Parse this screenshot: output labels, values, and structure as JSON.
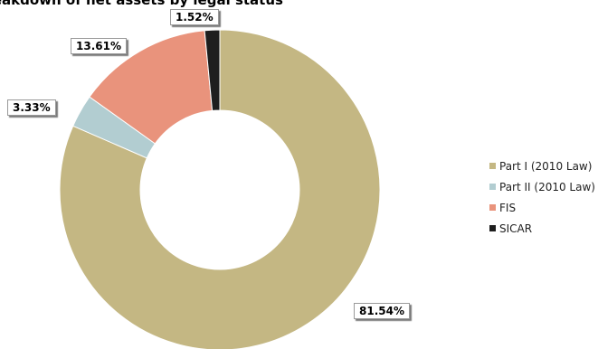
{
  "chart_data": {
    "type": "pie",
    "title": "Breakdown of net assets by legal status",
    "categories": [
      "Part I (2010 Law)",
      "Part II (2010 Law)",
      "FIS",
      "SICAR"
    ],
    "values": [
      81.54,
      3.33,
      13.61,
      1.52
    ],
    "value_labels": [
      "81.54%",
      "3.33%",
      "13.61%",
      "1.52%"
    ],
    "colors": [
      "#c4b783",
      "#b2cdd1",
      "#e9937c",
      "#1e1e1e"
    ],
    "donut": true,
    "legend_position": "right"
  }
}
